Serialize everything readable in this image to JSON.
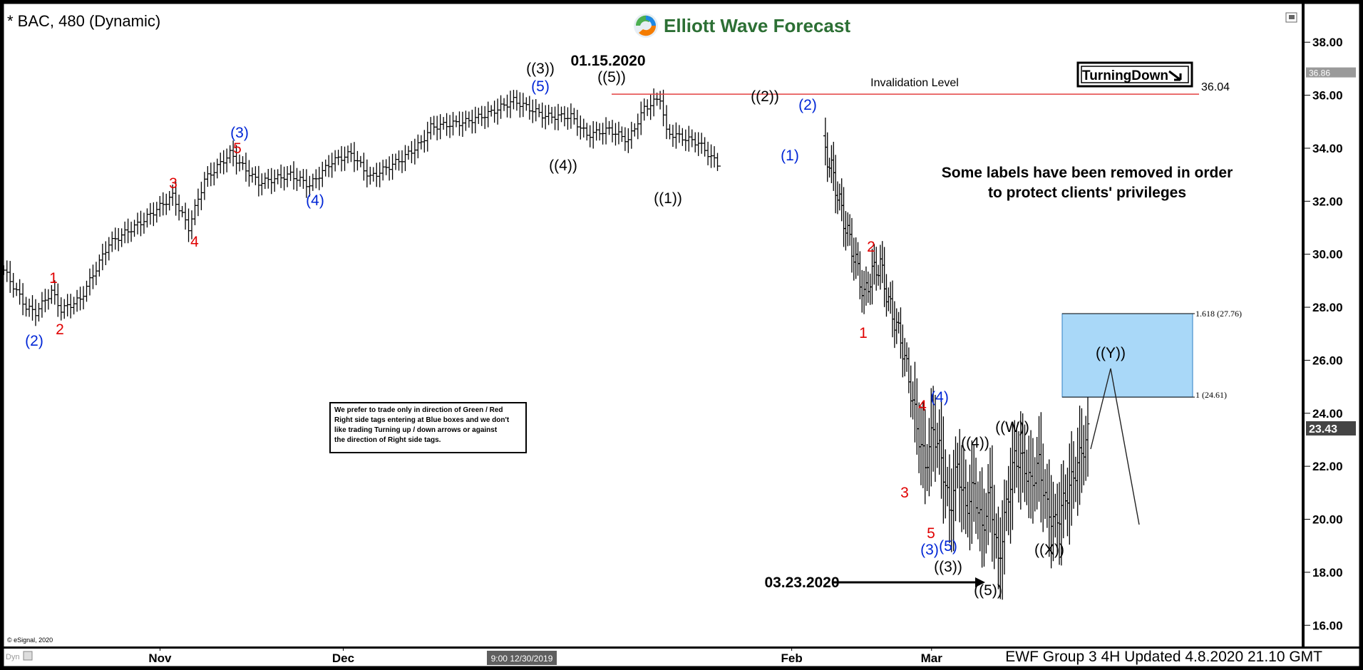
{
  "header": {
    "symbol_label": "* BAC, 480 (Dynamic)",
    "brand_name": "Elliott Wave Forecast",
    "window_icon": "window-restore-icon"
  },
  "colors": {
    "background": "#ffffff",
    "frame": "#000000",
    "bars": "#000000",
    "red_label": "#e00000",
    "blue_label": "#0026d6",
    "black_label": "#000000",
    "invalidation_line": "#e34040",
    "target_box_fill": "#a9d8f8",
    "target_box_stroke": "#2f7fc4",
    "price_tag_bg": "#444444",
    "logo_green": "#4caf50",
    "logo_orange": "#f57c00",
    "logo_blue": "#1e88e5"
  },
  "chart_data": {
    "type": "ohlc",
    "title": "* BAC, 480 (Dynamic)",
    "ylim": [
      15.2,
      39.2
    ],
    "y_ticks": [
      16,
      18,
      20,
      22,
      24,
      26,
      28,
      30,
      32,
      34,
      36,
      38
    ],
    "y_tick_labels": [
      "16.00",
      "18.00",
      "20.00",
      "22.00",
      "24.00",
      "26.00",
      "28.00",
      "30.00",
      "32.00",
      "34.00",
      "36.00",
      "38.00"
    ],
    "x_tick_labels": [
      "Nov",
      "Dec",
      "Feb",
      "Mar"
    ],
    "x_cursor_label": "9:00 12/30/2019",
    "bar_count": 225,
    "path": [
      [
        0,
        29.4
      ],
      [
        7,
        28.0
      ],
      [
        10,
        27.8
      ],
      [
        15,
        28.6
      ],
      [
        18,
        27.9
      ],
      [
        24,
        28.3
      ],
      [
        33,
        30.4
      ],
      [
        43,
        31.2
      ],
      [
        53,
        32.2
      ],
      [
        58,
        31.0
      ],
      [
        63,
        32.8
      ],
      [
        71,
        33.8
      ],
      [
        80,
        32.7
      ],
      [
        90,
        33.0
      ],
      [
        96,
        32.6
      ],
      [
        103,
        33.5
      ],
      [
        109,
        33.8
      ],
      [
        115,
        32.9
      ],
      [
        125,
        33.6
      ],
      [
        131,
        34.2
      ],
      [
        134,
        34.8
      ],
      [
        145,
        35.0
      ],
      [
        152,
        35.3
      ],
      [
        160,
        35.8
      ],
      [
        170,
        35.2
      ],
      [
        178,
        35.2
      ],
      [
        183,
        34.5
      ],
      [
        190,
        34.7
      ],
      [
        196,
        34.3
      ],
      [
        201,
        35.5
      ],
      [
        206,
        35.9
      ],
      [
        208,
        34.6
      ],
      [
        218,
        34.2
      ],
      [
        224,
        33.4
      ],
      [
        232,
        32.7
      ],
      [
        240,
        34.3
      ],
      [
        249,
        35.0
      ],
      [
        256,
        34.4
      ],
      [
        262,
        35.0
      ],
      [
        266,
        34.1
      ],
      [
        270,
        35.0
      ],
      [
        274,
        34.1
      ]
    ],
    "current_price": "23.43",
    "price_tag_label": "36.86",
    "invalidation": {
      "label": "Invalidation Level",
      "value": 36.04,
      "value_label": "36.04"
    },
    "target_box": {
      "upper": 27.76,
      "lower": 24.61,
      "upper_label": "1.618 (27.76)",
      "lower_label": "1 (24.61)"
    },
    "annotations": {
      "date_top": "01.15.2020",
      "date_bottom": "03.23.2020",
      "note_right": "Some labels have been removed in order",
      "note_right2": "to protect clients' privileges",
      "disclaimer": [
        "We prefer to trade only in direction of Green / Red",
        "Right side tags entering at Blue boxes and we don't",
        "like trading Turning up / down arrows or against",
        "the direction of Right side tags."
      ],
      "turning_tag": "TurningDown",
      "footer": "EWF Group 3 4H Updated 4.8.2020 21.10 GMT",
      "copyright": "© eSignal, 2020",
      "dyn": "Dyn"
    },
    "wave_labels": [
      {
        "text": "(2)",
        "color": "blue"
      },
      {
        "text": "1",
        "color": "red"
      },
      {
        "text": "2",
        "color": "red"
      },
      {
        "text": "3",
        "color": "red"
      },
      {
        "text": "4",
        "color": "red"
      },
      {
        "text": "5",
        "color": "red"
      },
      {
        "text": "(3)",
        "color": "blue"
      },
      {
        "text": "(4)",
        "color": "blue"
      },
      {
        "text": "(5)",
        "color": "blue"
      },
      {
        "text": "((3))",
        "color": "black"
      },
      {
        "text": "((4))",
        "color": "black"
      },
      {
        "text": "((5))",
        "color": "black"
      },
      {
        "text": "((1))",
        "color": "black"
      },
      {
        "text": "((2))",
        "color": "black"
      },
      {
        "text": "(1)",
        "color": "blue"
      },
      {
        "text": "(2)",
        "color": "blue"
      },
      {
        "text": "2",
        "color": "red"
      },
      {
        "text": "1",
        "color": "red"
      },
      {
        "text": "3",
        "color": "red"
      },
      {
        "text": "4",
        "color": "red"
      },
      {
        "text": "(4)",
        "color": "blue"
      },
      {
        "text": "5",
        "color": "red"
      },
      {
        "text": "(3)",
        "color": "blue"
      },
      {
        "text": "(5)",
        "color": "blue"
      },
      {
        "text": "((3))",
        "color": "black"
      },
      {
        "text": "((4))",
        "color": "black"
      },
      {
        "text": "((W))",
        "color": "black"
      },
      {
        "text": "((5))",
        "color": "black"
      },
      {
        "text": "((X))",
        "color": "black"
      },
      {
        "text": "((Y))",
        "color": "black"
      }
    ]
  }
}
